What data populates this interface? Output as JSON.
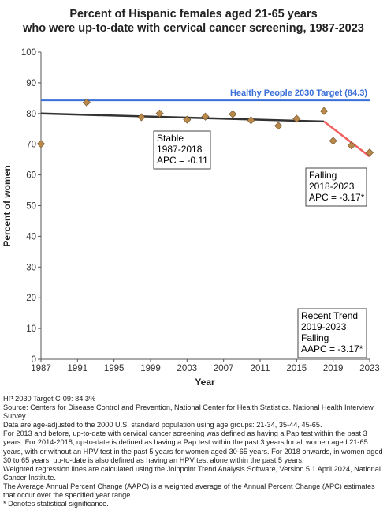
{
  "chart_data": {
    "type": "line",
    "title_lines": [
      "Percent of Hispanic females aged 21-65 years",
      "who were up-to-date with cervical cancer screening, 1987-2023"
    ],
    "xlabel": "Year",
    "ylabel": "Percent of women",
    "xlim": [
      1987,
      2023
    ],
    "ylim": [
      0,
      100
    ],
    "x_ticks": [
      1987,
      1991,
      1995,
      1999,
      2003,
      2007,
      2011,
      2015,
      2019,
      2023
    ],
    "y_ticks": [
      0,
      10,
      20,
      30,
      40,
      50,
      60,
      70,
      80,
      90,
      100
    ],
    "grid": false,
    "points": [
      {
        "x": 1987,
        "y": 70.1
      },
      {
        "x": 1992,
        "y": 83.6
      },
      {
        "x": 1998,
        "y": 78.8
      },
      {
        "x": 2000,
        "y": 80.0
      },
      {
        "x": 2003,
        "y": 78.0
      },
      {
        "x": 2005,
        "y": 79.0
      },
      {
        "x": 2008,
        "y": 79.8
      },
      {
        "x": 2010,
        "y": 77.8
      },
      {
        "x": 2013,
        "y": 76.0
      },
      {
        "x": 2015,
        "y": 78.3
      },
      {
        "x": 2018,
        "y": 80.8
      },
      {
        "x": 2019,
        "y": 71.1
      },
      {
        "x": 2021,
        "y": 69.6
      },
      {
        "x": 2023,
        "y": 67.3
      }
    ],
    "trend_segments": [
      {
        "x": [
          1987,
          2018
        ],
        "y": [
          80.0,
          77.4
        ],
        "color": "#333333"
      },
      {
        "x": [
          2018,
          2023
        ],
        "y": [
          77.4,
          66.0
        ],
        "color": "#f06060"
      }
    ],
    "target": {
      "value": 84.3,
      "label": "Healthy People 2030 Target (84.3)",
      "color": "#3a6fd8"
    },
    "annotations": [
      {
        "lines": [
          "Stable",
          "1987-2018",
          "APC = -0.11"
        ]
      },
      {
        "lines": [
          "Falling",
          "2018-2023",
          "APC = -3.17*"
        ]
      },
      {
        "lines": [
          "Recent Trend",
          "2019-2023",
          "Falling",
          "AAPC = -3.17*"
        ]
      }
    ],
    "marker_color": "#b8894a"
  },
  "notes": [
    "HP 2030 Target C-09: 84.3%",
    "Source: Centers for Disease Control and Prevention, National Center for Health Statistics. National Health Interview Survey.",
    "Data are age-adjusted to the 2000 U.S. standard population using age groups: 21-34, 35-44, 45-65.",
    "For 2013 and before, up-to-date with cervical cancer screening was defined as having a Pap test within the past 3 years. For 2014-2018, up-to-date is defined as having a Pap test within the past 3 years for all women aged 21-65 years, with or without an HPV test in the past 5 years for women aged 30-65 years.  For 2018 onwards, in women aged 30 to 65 years, up-to-date is also defined as having an HPV test alone within the past 5 years.",
    "Weighted regression lines are calculated using the Joinpoint Trend Analysis Software, Version 5.1 April 2024, National Cancer Institute.",
    "The Average Annual Percent Change (AAPC) is a weighted average of the Annual Percent Change (APC) estimates that occur over the specified year range.",
    "* Denotes statistical significance."
  ]
}
